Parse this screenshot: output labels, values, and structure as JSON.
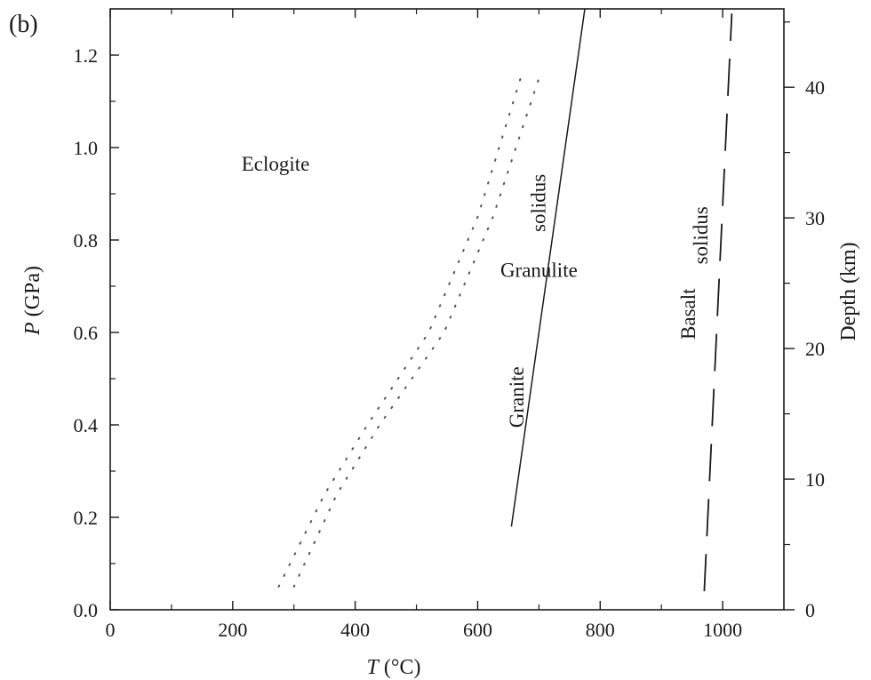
{
  "panel_label": "(b)",
  "chart_data": {
    "type": "line",
    "xlabel_italic": "T",
    "xlabel_unit": "(°C)",
    "ylabel_italic": "P",
    "ylabel_unit": "(GPa)",
    "y2label": "Depth (km)",
    "xlim": [
      0,
      1100
    ],
    "ylim": [
      0,
      1.3
    ],
    "y2lim": [
      0,
      46
    ],
    "x_ticks_major": [
      0,
      200,
      400,
      600,
      800,
      1000
    ],
    "x_tick_labels": [
      "0",
      "200",
      "400",
      "600",
      "800",
      "1000"
    ],
    "x_ticks_minor": [
      100,
      300,
      500,
      700,
      900
    ],
    "y_ticks": [
      0.0,
      0.2,
      0.4,
      0.6,
      0.8,
      1.0,
      1.2
    ],
    "y_tick_labels": [
      "0.0",
      "0.2",
      "0.4",
      "0.6",
      "0.8",
      "1.0",
      "1.2"
    ],
    "y_ticks_minor": [
      0.1,
      0.3,
      0.5,
      0.7,
      0.9,
      1.1
    ],
    "y2_ticks": [
      0,
      10,
      20,
      30,
      40
    ],
    "y2_tick_labels": [
      "0",
      "10",
      "20",
      "30",
      "40"
    ],
    "y2_ticks_minor": [
      5,
      15,
      25,
      35,
      45
    ],
    "series": [
      {
        "name": "Granite solidus",
        "style": "solid",
        "x": [
          655,
          775
        ],
        "y": [
          0.18,
          1.3
        ]
      },
      {
        "name": "Basalt solidus",
        "style": "dashed",
        "x": [
          970,
          1015
        ],
        "y": [
          0.04,
          1.29
        ]
      },
      {
        "style": "dotted",
        "x": [
          275,
          350,
          420,
          520,
          600,
          670
        ],
        "y": [
          0.05,
          0.25,
          0.4,
          0.6,
          0.85,
          1.15
        ]
      },
      {
        "style": "dotted",
        "x": [
          300,
          370,
          440,
          545,
          625,
          700
        ],
        "y": [
          0.05,
          0.25,
          0.4,
          0.6,
          0.85,
          1.15
        ]
      }
    ],
    "annotations": [
      {
        "text": "Eclogite",
        "x": 270,
        "y": 0.95,
        "rotate": false
      },
      {
        "text": "Granulite",
        "x": 700,
        "y": 0.72,
        "rotate": false
      },
      {
        "text": "Granite",
        "x": 675,
        "y": 0.46,
        "rotate": true
      },
      {
        "text": "solidus",
        "x": 710,
        "y": 0.88,
        "rotate": true
      },
      {
        "text": "Basalt",
        "x": 955,
        "y": 0.64,
        "rotate": true
      },
      {
        "text": "solidus",
        "x": 975,
        "y": 0.81,
        "rotate": true
      }
    ]
  }
}
